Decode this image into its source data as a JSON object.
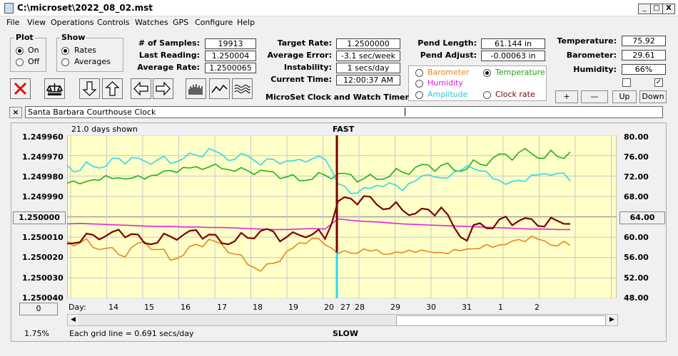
{
  "window": {
    "title": "C:\\microset\\2022_08_02.mst",
    "min": "_",
    "max": "□",
    "close": "X"
  },
  "menu": [
    "File",
    "View",
    "Operations",
    "Controls",
    "Watches",
    "GPS",
    "Configure",
    "Help"
  ],
  "plot_group": {
    "title": "Plot",
    "on": "On",
    "off": "Off"
  },
  "show_group": {
    "title": "Show",
    "rates": "Rates",
    "averages": "Averages"
  },
  "stats": {
    "samples_label": "# of Samples:",
    "samples": "19913",
    "last_label": "Last Reading:",
    "last": "1.250004",
    "avg_label": "Average Rate:",
    "avg": "1.2500065",
    "target_label": "Target Rate:",
    "target": "1.2500000",
    "avgerr_label": "Average Error:",
    "avgerr": "-3.1 sec/week",
    "instab_label": "Instability:",
    "instab": "1 secs/day",
    "time_label": "Current Time:",
    "time": "12:00:37 AM",
    "pendlen_label": "Pend Length:",
    "pendlen": "61.144 in",
    "pendadj_label": "Pend Adjust:",
    "pendadj": "-0.00063 in",
    "temp_label": "Temperature:",
    "temp": "75.92",
    "baro_label": "Barometer:",
    "baro": "29.61",
    "hum_label": "Humidity:",
    "hum": "66%"
  },
  "app_caption": "MicroSet Clock and Watch Timer",
  "options": {
    "barometer": "Barometer",
    "temperature": "Temperature",
    "humidity": "Humidity",
    "amplitude": "Amplitude",
    "clockrate": "Clock rate"
  },
  "buttons": {
    "plus": "+",
    "minus": "—",
    "up": "Up",
    "down": "Down",
    "close_x": "×"
  },
  "clock_name": "Santa Barbara Courthouse Clock",
  "colors": {
    "barometer": "#e8861c",
    "temperature": "#20b020",
    "humidity": "#e020e0",
    "amplitude": "#30d8e8",
    "rate": "#7a0000",
    "plot_bg": "#ffffc8"
  },
  "plot": {
    "days_shown": "21.0 days shown",
    "fast": "FAST",
    "slow": "SLOW",
    "grid_note": "Each grid line = 0.691 secs/day",
    "pct": "1.75%",
    "left_box": "1.250000",
    "right_box": "64.00",
    "zero_box": "0",
    "day_label": "Day:"
  },
  "chart_data": {
    "type": "line",
    "y_left_ticks": [
      "1.249960",
      "1.249970",
      "1.249980",
      "1.249990",
      "1.250000",
      "1.250010",
      "1.250020",
      "1.250030",
      "1.250040"
    ],
    "y_right_ticks": [
      "80.00",
      "76.00",
      "72.00",
      "68.00",
      "64.00",
      "60.00",
      "56.00",
      "52.00",
      "48.00"
    ],
    "x_ticks": [
      "14",
      "15",
      "16",
      "17",
      "18",
      "19",
      "20",
      "27",
      "28",
      "29",
      "30",
      "31",
      "1",
      "2"
    ],
    "ylim_left": [
      1.25004,
      1.24996
    ],
    "ylim_right": [
      48,
      80
    ],
    "series": [
      {
        "key": "temperature",
        "values": [
          71.2,
          70.8,
          71.0,
          71.5,
          71.3,
          71.8,
          72.0,
          72.6,
          72.9,
          73.1,
          73.4,
          73.9,
          74.0,
          73.4,
          73.0,
          72.6,
          72.3,
          71.8,
          71.6,
          71.9,
          72.2,
          72.0,
          71.7,
          71.4,
          71.8,
          72.5,
          72.9,
          73.3,
          73.6,
          73.9,
          73.5,
          74.0,
          74.6,
          75.2,
          75.7,
          76.3,
          76.7,
          76.1,
          76.2,
          76.5
        ]
      },
      {
        "key": "amplitude",
        "values": [
          73.9,
          73.4,
          74.5,
          74.2,
          75.2,
          75.0,
          74.6,
          75.4,
          75.1,
          75.8,
          75.9,
          76.8,
          75.8,
          75.4,
          76.5,
          74.6,
          75.2,
          74.4,
          74.8,
          75.4,
          75.8,
          71.0,
          68.6,
          69.2,
          69.6,
          70.6,
          69.6,
          71.6,
          72.4,
          71.2,
          72.2,
          73.8,
          73.4,
          72.1,
          70.6,
          70.8,
          71.6,
          72.2,
          72.8,
          71.6
        ]
      },
      {
        "key": "humidity",
        "values": [
          62.6,
          62.7,
          62.6,
          62.5,
          62.4,
          62.3,
          62.2,
          62.1,
          62.1,
          62.0,
          62.0,
          61.9,
          61.9,
          61.8,
          61.7,
          61.6,
          61.5,
          61.5,
          61.6,
          61.7,
          61.6,
          63.6,
          63.3,
          63.1,
          63.0,
          62.8,
          62.6,
          62.5,
          62.4,
          62.3,
          62.2,
          62.1,
          62.0,
          61.9,
          61.8,
          61.7,
          61.6,
          61.6,
          61.5,
          61.5
        ]
      },
      {
        "key": "barometer",
        "values": [
          59.0,
          59.2,
          58.6,
          58.1,
          56.3,
          57.4,
          58.8,
          57.8,
          56.1,
          56.8,
          58.4,
          59.0,
          58.2,
          56.8,
          55.2,
          53.8,
          54.8,
          56.6,
          58.4,
          59.8,
          59.0,
          57.3,
          56.9,
          57.2,
          57.0,
          56.6,
          57.4,
          57.6,
          57.3,
          56.6,
          57.0,
          57.5,
          58.2,
          58.6,
          58.8,
          59.2,
          59.6,
          59.0,
          58.6,
          59.0
        ]
      },
      {
        "key": "rate",
        "values": [
          59.2,
          59.6,
          60.6,
          59.8,
          60.9,
          60.4,
          59.2,
          59.5,
          60.4,
          60.1,
          60.8,
          60.2,
          59.1,
          59.8,
          60.2,
          61.0,
          60.5,
          59.6,
          60.6,
          61.1,
          60.1,
          66.9,
          67.0,
          67.6,
          66.5,
          66.2,
          65.8,
          64.6,
          64.9,
          65.3,
          61.9,
          59.8,
          63.3,
          61.8,
          63.6,
          62.6,
          63.4,
          62.5,
          63.8,
          62.8
        ]
      }
    ]
  }
}
